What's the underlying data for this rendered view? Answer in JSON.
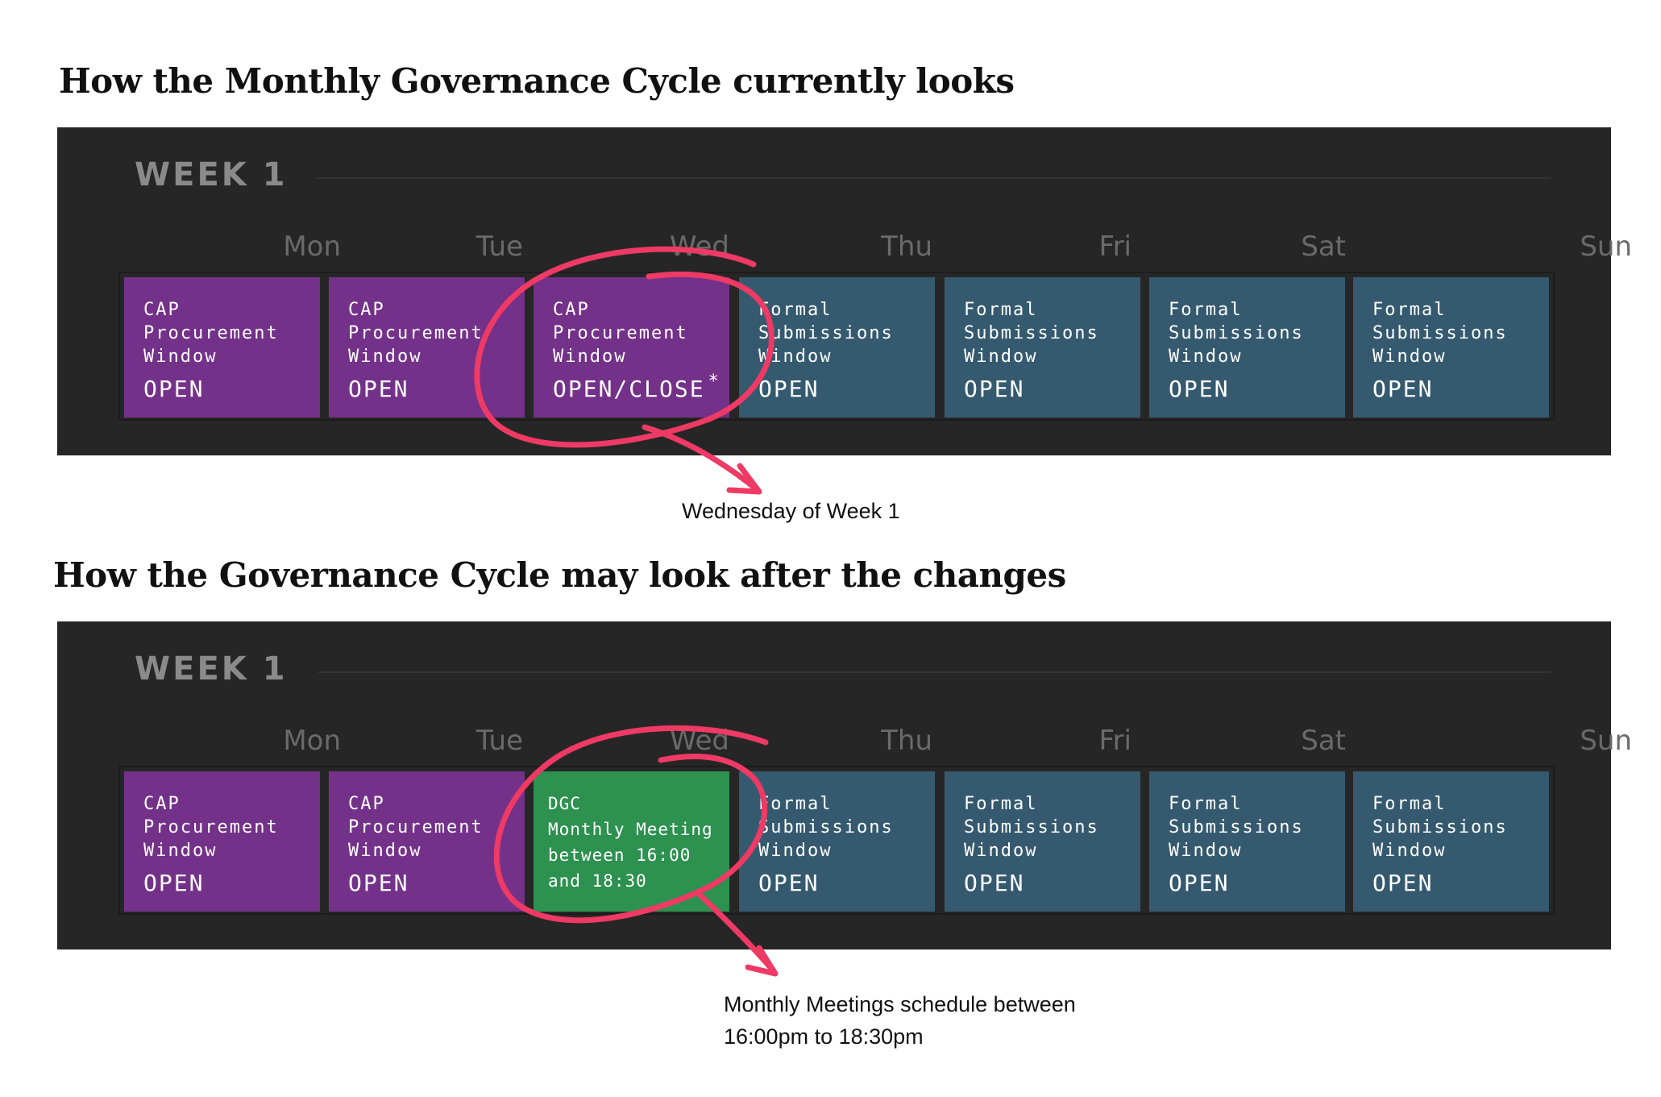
{
  "diagram": {
    "top": {
      "heading": "How the Monthly Governance Cycle currently looks",
      "week_label": "WEEK 1",
      "days": [
        "Mon",
        "Tue",
        "Wed",
        "Thu",
        "Fri",
        "Sat",
        "Sun"
      ],
      "cells": [
        {
          "title": "CAP\nProcurement\nWindow",
          "status": "OPEN",
          "color": "#74318a"
        },
        {
          "title": "CAP\nProcurement\nWindow",
          "status": "OPEN",
          "color": "#74318a"
        },
        {
          "title": "CAP\nProcurement\nWindow",
          "status": "OPEN/CLOSE",
          "note_mark": "*",
          "color": "#74318a"
        },
        {
          "title": "Formal\nSubmissions\nWindow",
          "status": "OPEN",
          "color": "#355a6f"
        },
        {
          "title": "Formal\nSubmissions\nWindow",
          "status": "OPEN",
          "color": "#355a6f"
        },
        {
          "title": "Formal\nSubmissions\nWindow",
          "status": "OPEN",
          "color": "#355a6f"
        },
        {
          "title": "Formal\nSubmissions\nWindow",
          "status": "OPEN",
          "color": "#355a6f"
        }
      ],
      "annotation": "Wednesday of Week 1"
    },
    "bottom": {
      "heading": "How the Governance Cycle may look after the changes",
      "week_label": "WEEK 1",
      "days": [
        "Mon",
        "Tue",
        "Wed",
        "Thu",
        "Fri",
        "Sat",
        "Sun"
      ],
      "cells": [
        {
          "title": "CAP\nProcurement\nWindow",
          "status": "OPEN",
          "color": "#74318a"
        },
        {
          "title": "CAP\nProcurement\nWindow",
          "status": "OPEN",
          "color": "#74318a"
        },
        {
          "title": "DGC\nMonthly Meeting\nbetween 16:00\nand 18:30",
          "status": "",
          "color": "#2d9150"
        },
        {
          "title": "Formal\nSubmissions\nWindow",
          "status": "OPEN",
          "color": "#355a6f"
        },
        {
          "title": "Formal\nSubmissions\nWindow",
          "status": "OPEN",
          "color": "#355a6f"
        },
        {
          "title": "Formal\nSubmissions\nWindow",
          "status": "OPEN",
          "color": "#355a6f"
        },
        {
          "title": "Formal\nSubmissions\nWindow",
          "status": "OPEN",
          "color": "#355a6f"
        }
      ],
      "annotation_line1": "Monthly Meetings schedule between",
      "annotation_line2": "16:00pm to 18:30pm"
    },
    "colors": {
      "highlight_ink": "#ee3a64",
      "panel": "#262626"
    }
  }
}
